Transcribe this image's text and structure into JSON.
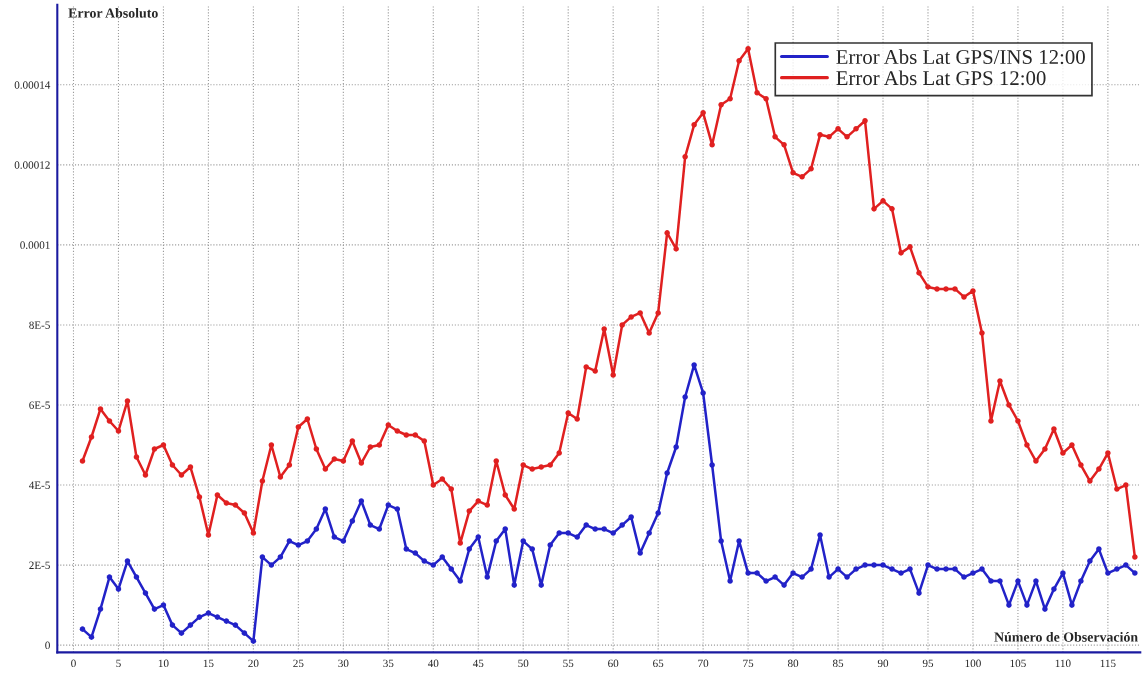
{
  "chart_data": {
    "type": "line",
    "xlabel": "Número de Observación",
    "ylabel": "Error Absoluto",
    "x": [
      1,
      2,
      3,
      4,
      5,
      6,
      7,
      8,
      9,
      10,
      11,
      12,
      13,
      14,
      15,
      16,
      17,
      18,
      19,
      20,
      21,
      22,
      23,
      24,
      25,
      26,
      27,
      28,
      29,
      30,
      31,
      32,
      33,
      34,
      35,
      36,
      37,
      38,
      39,
      40,
      41,
      42,
      43,
      44,
      45,
      46,
      47,
      48,
      49,
      50,
      51,
      52,
      53,
      54,
      55,
      56,
      57,
      58,
      59,
      60,
      61,
      62,
      63,
      64,
      65,
      66,
      67,
      68,
      69,
      70,
      71,
      72,
      73,
      74,
      75,
      76,
      77,
      78,
      79,
      80,
      81,
      82,
      83,
      84,
      85,
      86,
      87,
      88,
      89,
      90,
      91,
      92,
      93,
      94,
      95,
      96,
      97,
      98,
      99,
      100,
      101,
      102,
      103,
      104,
      105,
      106,
      107,
      108,
      109,
      110,
      111,
      112,
      113,
      114,
      115,
      116,
      117,
      118
    ],
    "series": [
      {
        "name": "Error Abs Lat GPS/INS 12:00",
        "color": "#2222c8",
        "values": [
          4e-06,
          2e-06,
          9e-06,
          1.7e-05,
          1.4e-05,
          2.1e-05,
          1.7e-05,
          1.3e-05,
          9e-06,
          1e-05,
          5e-06,
          3e-06,
          5e-06,
          7e-06,
          8e-06,
          7e-06,
          6e-06,
          5e-06,
          3e-06,
          1e-06,
          2.2e-05,
          2e-05,
          2.2e-05,
          2.6e-05,
          2.5e-05,
          2.6e-05,
          2.9e-05,
          3.4e-05,
          2.7e-05,
          2.6e-05,
          3.1e-05,
          3.6e-05,
          3e-05,
          2.9e-05,
          3.5e-05,
          3.4e-05,
          2.4e-05,
          2.3e-05,
          2.1e-05,
          2e-05,
          2.2e-05,
          1.9e-05,
          1.6e-05,
          2.4e-05,
          2.7e-05,
          1.7e-05,
          2.6e-05,
          2.9e-05,
          1.5e-05,
          2.6e-05,
          2.4e-05,
          1.5e-05,
          2.5e-05,
          2.8e-05,
          2.8e-05,
          2.7e-05,
          3e-05,
          2.9e-05,
          2.9e-05,
          2.8e-05,
          3e-05,
          3.2e-05,
          2.3e-05,
          2.8e-05,
          3.3e-05,
          4.3e-05,
          4.95e-05,
          6.2e-05,
          7e-05,
          6.3e-05,
          4.5e-05,
          2.6e-05,
          1.6e-05,
          2.6e-05,
          1.8e-05,
          1.8e-05,
          1.6e-05,
          1.7e-05,
          1.5e-05,
          1.8e-05,
          1.7e-05,
          1.9e-05,
          2.75e-05,
          1.7e-05,
          1.9e-05,
          1.7e-05,
          1.9e-05,
          2e-05,
          2e-05,
          2e-05,
          1.9e-05,
          1.8e-05,
          1.9e-05,
          1.3e-05,
          2e-05,
          1.9e-05,
          1.9e-05,
          1.9e-05,
          1.7e-05,
          1.8e-05,
          1.9e-05,
          1.6e-05,
          1.6e-05,
          1e-05,
          1.6e-05,
          1e-05,
          1.6e-05,
          9e-06,
          1.4e-05,
          1.8e-05,
          1e-05,
          1.6e-05,
          2.1e-05,
          2.4e-05,
          1.8e-05,
          1.9e-05,
          2e-05,
          1.8e-05
        ]
      },
      {
        "name": "Error Abs Lat GPS 12:00",
        "color": "#e02020",
        "values": [
          4.6e-05,
          5.2e-05,
          5.9e-05,
          5.6e-05,
          5.35e-05,
          6.1e-05,
          4.7e-05,
          4.25e-05,
          4.9e-05,
          5e-05,
          4.5e-05,
          4.25e-05,
          4.45e-05,
          3.7e-05,
          2.75e-05,
          3.75e-05,
          3.55e-05,
          3.5e-05,
          3.3e-05,
          2.8e-05,
          4.1e-05,
          5e-05,
          4.2e-05,
          4.5e-05,
          5.45e-05,
          5.65e-05,
          4.9e-05,
          4.4e-05,
          4.65e-05,
          4.6e-05,
          5.1e-05,
          4.55e-05,
          4.95e-05,
          5e-05,
          5.5e-05,
          5.35e-05,
          5.25e-05,
          5.25e-05,
          5.1e-05,
          4e-05,
          4.15e-05,
          3.9e-05,
          2.55e-05,
          3.35e-05,
          3.6e-05,
          3.5e-05,
          4.6e-05,
          3.75e-05,
          3.4e-05,
          4.5e-05,
          4.4e-05,
          4.45e-05,
          4.5e-05,
          4.8e-05,
          5.8e-05,
          5.65e-05,
          6.95e-05,
          6.85e-05,
          7.9e-05,
          6.75e-05,
          8e-05,
          8.2e-05,
          8.3e-05,
          7.8e-05,
          8.3e-05,
          0.000103,
          9.9e-05,
          0.000122,
          0.00013,
          0.000133,
          0.000125,
          0.000135,
          0.0001365,
          0.000146,
          0.000149,
          0.000138,
          0.0001365,
          0.000127,
          0.000125,
          0.000118,
          0.000117,
          0.000119,
          0.0001275,
          0.000127,
          0.000129,
          0.000127,
          0.000129,
          0.000131,
          0.000109,
          0.000111,
          0.000109,
          9.8e-05,
          9.95e-05,
          9.3e-05,
          8.95e-05,
          8.9e-05,
          8.9e-05,
          8.9e-05,
          8.7e-05,
          8.85e-05,
          7.8e-05,
          5.6e-05,
          6.6e-05,
          6e-05,
          5.6e-05,
          5e-05,
          4.6e-05,
          4.9e-05,
          5.4e-05,
          4.8e-05,
          5e-05,
          4.5e-05,
          4.1e-05,
          4.4e-05,
          4.8e-05,
          3.9e-05,
          4e-05,
          2.2e-05
        ]
      }
    ],
    "xlim": [
      -1.8,
      118.6
    ],
    "ylim": [
      -1.8e-06,
      0.00016
    ],
    "xticks": [
      0,
      5,
      10,
      15,
      20,
      25,
      30,
      35,
      40,
      45,
      50,
      55,
      60,
      65,
      70,
      75,
      80,
      85,
      90,
      95,
      100,
      105,
      110,
      115
    ],
    "yticks": [
      0,
      {
        "value": 2e-05,
        "label": "2E-5"
      },
      {
        "value": 4e-05,
        "label": "4E-5"
      },
      {
        "value": 6e-05,
        "label": "6E-5"
      },
      {
        "value": 8e-05,
        "label": "8E-5"
      },
      {
        "value": 0.0001,
        "label": "0.0001"
      },
      {
        "value": 0.00012,
        "label": "0.00012"
      },
      {
        "value": 0.00014,
        "label": "0.00014"
      }
    ],
    "grid": true,
    "legend": "top right",
    "marker": "circle",
    "line_style": "solid"
  }
}
